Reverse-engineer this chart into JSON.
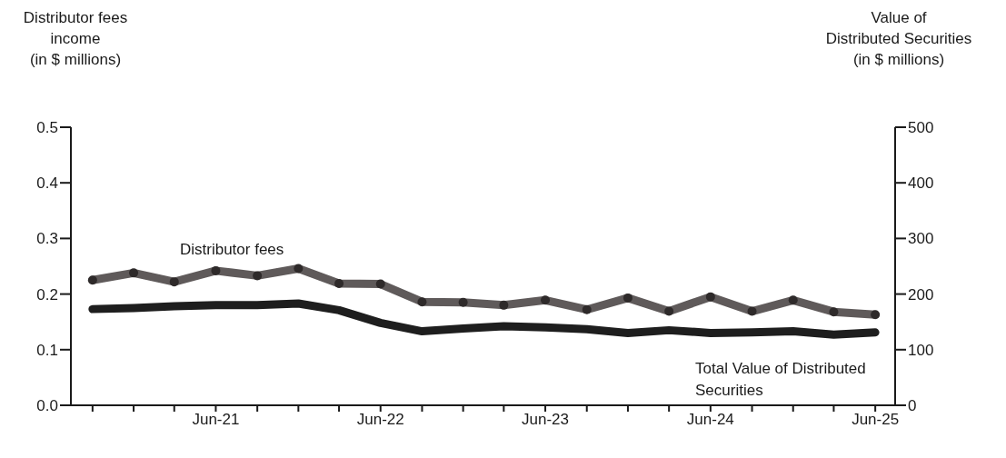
{
  "chart_data": {
    "type": "line",
    "ylabel": "Distributor fees\nincome\n(in $ millions)",
    "y2label": "Value of\nDistributed Securities\n(in $ millions)",
    "x": [
      "2020-09",
      "2020-12",
      "2021-03",
      "2021-06",
      "2021-09",
      "2021-12",
      "2022-03",
      "2022-06",
      "2022-09",
      "2022-12",
      "2023-03",
      "2023-06",
      "2023-09",
      "2023-12",
      "2024-03",
      "2024-06",
      "2024-09",
      "2024-12",
      "2025-03",
      "2025-06"
    ],
    "xlim": [
      "2020-07-15",
      "2025-07-15"
    ],
    "xticks": [
      {
        "value": "2020-09",
        "label": null
      },
      {
        "value": "2020-12",
        "label": null
      },
      {
        "value": "2021-03",
        "label": null
      },
      {
        "value": "2021-06",
        "label": "Jun-21"
      },
      {
        "value": "2021-09",
        "label": null
      },
      {
        "value": "2021-12",
        "label": null
      },
      {
        "value": "2022-03",
        "label": null
      },
      {
        "value": "2022-06",
        "label": "Jun-22"
      },
      {
        "value": "2022-09",
        "label": null
      },
      {
        "value": "2022-12",
        "label": null
      },
      {
        "value": "2023-03",
        "label": null
      },
      {
        "value": "2023-06",
        "label": "Jun-23"
      },
      {
        "value": "2023-09",
        "label": null
      },
      {
        "value": "2023-12",
        "label": null
      },
      {
        "value": "2024-03",
        "label": null
      },
      {
        "value": "2024-06",
        "label": "Jun-24"
      },
      {
        "value": "2024-09",
        "label": null
      },
      {
        "value": "2024-12",
        "label": null
      },
      {
        "value": "2025-03",
        "label": null
      },
      {
        "value": "2025-06",
        "label": "Jun-25"
      }
    ],
    "ylim": [
      0,
      0.5
    ],
    "yticks": [
      {
        "value": 0,
        "label": "0.0"
      },
      0.1,
      0.2,
      0.3,
      0.4,
      0.5
    ],
    "y2lim": [
      0,
      500
    ],
    "y2ticks": [
      0,
      100,
      200,
      300,
      400,
      500
    ],
    "series": [
      {
        "name": "Distributor fees",
        "color": "#5f5a5a",
        "marker": "circle",
        "values": [
          0.225,
          0.238,
          0.222,
          0.242,
          0.233,
          0.246,
          0.219,
          0.218,
          0.186,
          0.185,
          0.18,
          0.189,
          0.172,
          0.193,
          0.169,
          0.195,
          0.169,
          0.189,
          0.168,
          0.163
        ]
      },
      {
        "name": "Total Value of Distributed Securities",
        "color": "#1e1e1e",
        "axis": "y2",
        "values": [
          173,
          175,
          178,
          180,
          180,
          183,
          171,
          148,
          133,
          138,
          142,
          140,
          137,
          130,
          135,
          130,
          131,
          133,
          127,
          131
        ]
      }
    ],
    "grid": false,
    "legend": false
  }
}
